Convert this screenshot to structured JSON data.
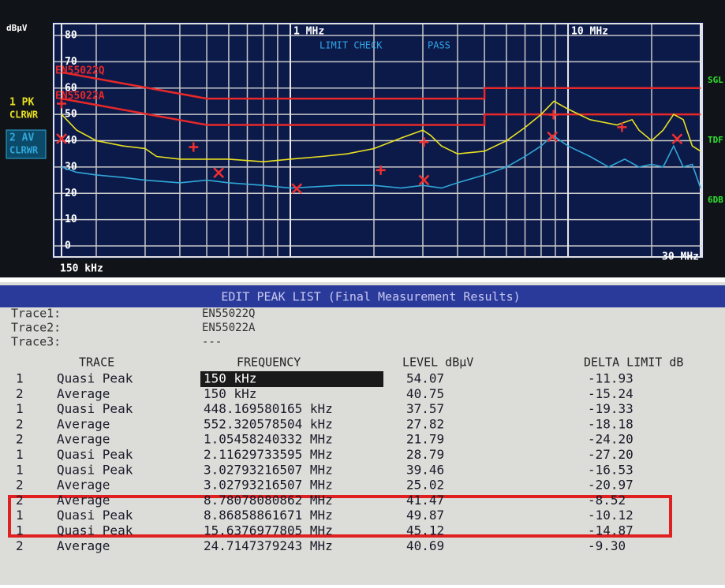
{
  "chart_data": {
    "type": "line",
    "y_label": "dBµV",
    "xscale": "log",
    "xlim": [
      0.15,
      30
    ],
    "ylim": [
      0,
      80
    ],
    "xticks": [
      {
        "value": 0.15,
        "label": "150 kHz"
      },
      {
        "value": 1,
        "label": "1 MHz"
      },
      {
        "value": 10,
        "label": "10 MHz"
      },
      {
        "value": 30,
        "label": "30 MHz"
      }
    ],
    "yticks": [
      0,
      10,
      20,
      30,
      40,
      50,
      60,
      70,
      80
    ],
    "grid": true,
    "limit_check": "LIMIT CHECK",
    "limit_result": "PASS",
    "series": [
      {
        "name": "EN55022Q",
        "color": "#e82828",
        "x": [
          0.15,
          0.5,
          5,
          5,
          30
        ],
        "values": [
          66,
          56,
          56,
          60,
          60
        ]
      },
      {
        "name": "EN55022A",
        "color": "#e82828",
        "x": [
          0.15,
          0.5,
          5,
          5,
          30
        ],
        "values": [
          56,
          46,
          46,
          50,
          50
        ]
      },
      {
        "name": "1 PK",
        "mode": "CLRWR",
        "color": "#e8e020",
        "x": [
          0.15,
          0.17,
          0.2,
          0.25,
          0.3,
          0.33,
          0.4,
          0.5,
          0.6,
          0.8,
          1.0,
          1.3,
          1.6,
          2.0,
          2.5,
          3.0,
          3.2,
          3.5,
          4.0,
          5.0,
          6,
          7,
          8,
          8.9,
          10,
          12,
          15,
          17,
          18,
          20,
          22,
          24,
          26,
          28,
          30
        ],
        "values": [
          50,
          44,
          40,
          38,
          37,
          34,
          33,
          33,
          33,
          32,
          33,
          34,
          35,
          37,
          41,
          44,
          42,
          38,
          35,
          36,
          40,
          45,
          50,
          55,
          52,
          48,
          46,
          48,
          44,
          40,
          44,
          50,
          48,
          38,
          36
        ]
      },
      {
        "name": "2 AV",
        "mode": "CLRWR",
        "color": "#30a8d8",
        "x": [
          0.15,
          0.17,
          0.2,
          0.25,
          0.3,
          0.4,
          0.5,
          0.6,
          0.8,
          1.0,
          1.5,
          2,
          2.5,
          3,
          3.5,
          4,
          5,
          6,
          7,
          8,
          8.8,
          10,
          12,
          14,
          16,
          18,
          20,
          22,
          24,
          26,
          28,
          30
        ],
        "values": [
          30,
          28,
          27,
          26,
          25,
          24,
          25,
          24,
          23,
          22,
          23,
          23,
          22,
          23,
          22,
          24,
          27,
          30,
          34,
          38,
          42,
          38,
          34,
          30,
          33,
          30,
          31,
          30,
          38,
          30,
          31,
          22
        ]
      }
    ],
    "markers": [
      {
        "symbol": "+",
        "color": "#f03030",
        "x": [
          0.15,
          0.448,
          2.116,
          3.028,
          8.869,
          15.64
        ],
        "values": [
          54.07,
          37.57,
          28.79,
          39.46,
          49.87,
          45.12
        ]
      },
      {
        "symbol": "x",
        "color": "#f03030",
        "x": [
          0.15,
          0.552,
          1.055,
          3.028,
          8.781,
          24.71
        ],
        "values": [
          40.75,
          27.82,
          21.79,
          25.02,
          41.47,
          40.69
        ]
      }
    ],
    "right_labels": [
      "SGL",
      "TDF",
      "6DB"
    ]
  },
  "peak_list": {
    "title": "EDIT PEAK LIST (Final Measurement Results)",
    "traces": [
      {
        "label": "Trace1:",
        "value": "EN55022Q"
      },
      {
        "label": "Trace2:",
        "value": "EN55022A"
      },
      {
        "label": "Trace3:",
        "value": "---"
      }
    ],
    "headers": [
      "TRACE",
      "FREQUENCY",
      "LEVEL dBµV",
      "DELTA LIMIT dB"
    ],
    "rows": [
      [
        "1",
        "Quasi Peak",
        "150 kHz",
        "54.07",
        "-11.93"
      ],
      [
        "2",
        "Average",
        "150 kHz",
        "40.75",
        "-15.24"
      ],
      [
        "1",
        "Quasi Peak",
        "448.169580165 kHz",
        "37.57",
        "-19.33"
      ],
      [
        "2",
        "Average",
        "552.320578504 kHz",
        "27.82",
        "-18.18"
      ],
      [
        "2",
        "Average",
        "1.05458240332 MHz",
        "21.79",
        "-24.20"
      ],
      [
        "1",
        "Quasi Peak",
        "2.11629733595 MHz",
        "28.79",
        "-27.20"
      ],
      [
        "1",
        "Quasi Peak",
        "3.02793216507 MHz",
        "39.46",
        "-16.53"
      ],
      [
        "2",
        "Average",
        "3.02793216507 MHz",
        "25.02",
        "-20.97"
      ],
      [
        "2",
        "Average",
        "8.78078080862 MHz",
        "41.47",
        "-8.52"
      ],
      [
        "1",
        "Quasi Peak",
        "8.86858861671 MHz",
        "49.87",
        "-10.12"
      ],
      [
        "1",
        "Quasi Peak",
        "15.6376977805 MHz",
        "45.12",
        "-14.87"
      ],
      [
        "2",
        "Average",
        "24.7147379243 MHz",
        "40.69",
        "-9.30"
      ]
    ]
  }
}
